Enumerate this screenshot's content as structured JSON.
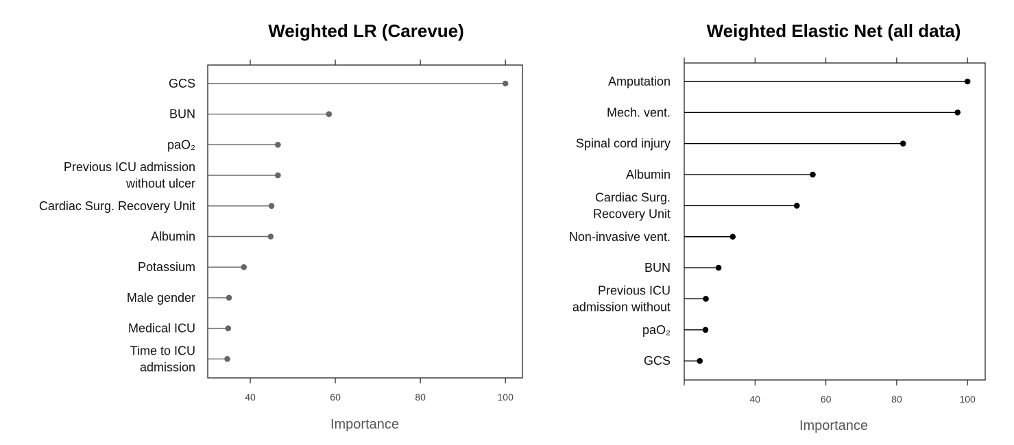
{
  "chart_data": [
    {
      "type": "lollipop",
      "title": "Weighted LR (Carevue)",
      "xlabel": "Importance",
      "xlim": [
        30,
        104
      ],
      "xticks": [
        40,
        60,
        80,
        100
      ],
      "tick_labels": [
        "40",
        "60",
        "80",
        "100"
      ],
      "top_ticks": true,
      "color": "#666666",
      "categories": [
        {
          "lines": [
            "GCS"
          ],
          "value": 100
        },
        {
          "lines": [
            "BUN"
          ],
          "value": 58.5
        },
        {
          "lines": [
            "paO₂"
          ],
          "value": 46.5
        },
        {
          "lines": [
            "Previous ICU admission",
            "without ulcer"
          ],
          "value": 46.5
        },
        {
          "lines": [
            "Cardiac Surg. Recovery Unit"
          ],
          "value": 45
        },
        {
          "lines": [
            "Albumin"
          ],
          "value": 44.8
        },
        {
          "lines": [
            "Potassium"
          ],
          "value": 38.5
        },
        {
          "lines": [
            "Male gender"
          ],
          "value": 35
        },
        {
          "lines": [
            "Medical ICU"
          ],
          "value": 34.8
        },
        {
          "lines": [
            "Time to ICU",
            "admission"
          ],
          "value": 34.6
        }
      ]
    },
    {
      "type": "lollipop",
      "title": "Weighted Elastic Net (all data)",
      "xlabel": "Importance",
      "xlim": [
        20,
        105
      ],
      "xticks": [
        20,
        40,
        60,
        80,
        100
      ],
      "tick_labels": [
        "",
        "40",
        "60",
        "80",
        "100"
      ],
      "top_ticks": true,
      "color": "#000000",
      "categories": [
        {
          "lines": [
            "Amputation"
          ],
          "value": 100
        },
        {
          "lines": [
            "Mech. vent."
          ],
          "value": 97.2
        },
        {
          "lines": [
            "Spinal cord injury"
          ],
          "value": 81.8
        },
        {
          "lines": [
            "Albumin"
          ],
          "value": 56.3
        },
        {
          "lines": [
            "Cardiac Surg.",
            "Recovery Unit"
          ],
          "value": 51.8
        },
        {
          "lines": [
            "Non-invasive vent."
          ],
          "value": 33.7
        },
        {
          "lines": [
            "BUN"
          ],
          "value": 29.7
        },
        {
          "lines": [
            "Previous ICU",
            "admission without"
          ],
          "value": 26.1
        },
        {
          "lines": [
            "paO₂"
          ],
          "value": 26.0
        },
        {
          "lines": [
            "GCS"
          ],
          "value": 24.4
        }
      ]
    }
  ]
}
